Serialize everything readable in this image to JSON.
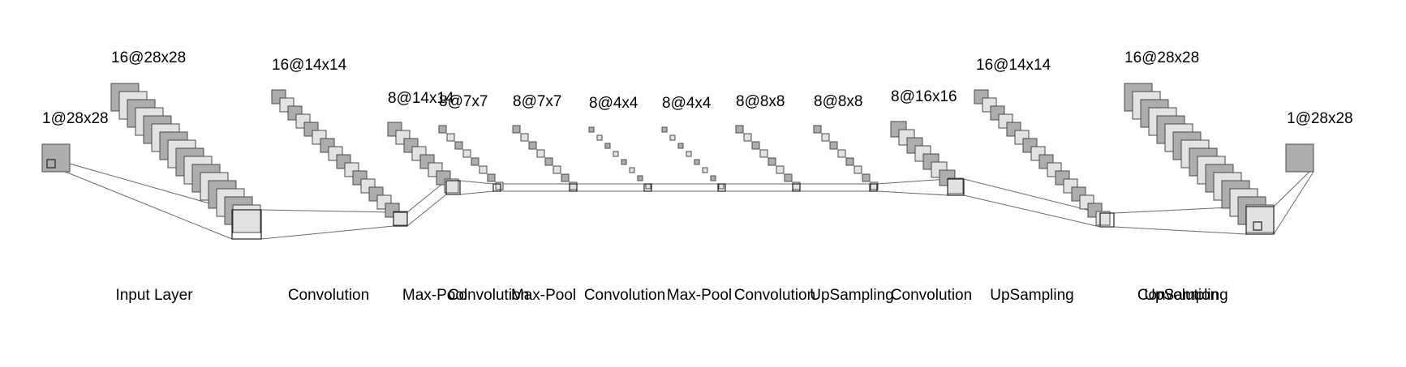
{
  "colors": {
    "background": "#ffffff",
    "fill_dark": "#adadad",
    "fill_light": "#e2e2e2",
    "stroke": "#4a4a4a",
    "connector": "#6a6a6a"
  },
  "layers": [
    {
      "label": "Input Layer",
      "size": "1@28x28",
      "maps": 1
    },
    {
      "label": "Convolution",
      "size": "16@28x28",
      "maps": 16
    },
    {
      "label": "Max-Pool",
      "size": "16@14x14",
      "maps": 16
    },
    {
      "label": "Convolution",
      "size": "8@14x14",
      "maps": 8
    },
    {
      "label": "Max-Pool",
      "size": "8@7x7",
      "maps": 8
    },
    {
      "label": "Convolution",
      "size": "8@7x7",
      "maps": 8
    },
    {
      "label": "Max-Pool",
      "size": "8@4x4",
      "maps": 8
    },
    {
      "label": "Convolution",
      "size": "8@4x4",
      "maps": 8
    },
    {
      "label": "UpSampling",
      "size": "8@8x8",
      "maps": 8
    },
    {
      "label": "Convolution",
      "size": "8@8x8",
      "maps": 8
    },
    {
      "label": "UpSampling",
      "size": "8@16x16",
      "maps": 8
    },
    {
      "label": "Convolution",
      "size": "16@14x14",
      "maps": 16
    },
    {
      "label": "UpSampling",
      "size": "16@28x28",
      "maps": 16
    },
    {
      "label": "",
      "size": "1@28x28",
      "maps": 1
    }
  ]
}
